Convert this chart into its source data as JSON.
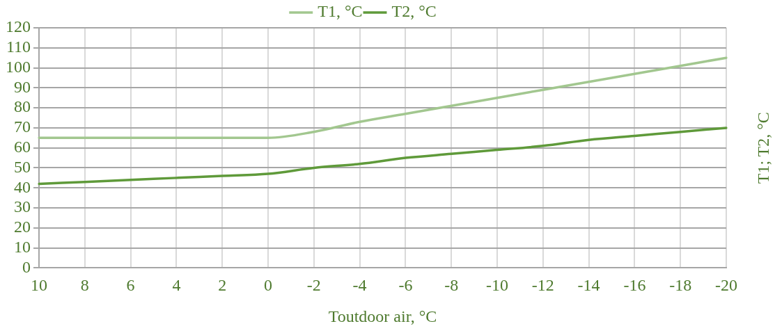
{
  "chart_data": {
    "type": "line",
    "xlabel": "Toutdoor air, °C",
    "ylabel": "T1; T2, °C",
    "categories": [
      "10",
      "8",
      "6",
      "4",
      "2",
      "0",
      "-2",
      "-4",
      "-6",
      "-8",
      "-10",
      "-12",
      "-14",
      "-16",
      "-18",
      "-20"
    ],
    "series": [
      {
        "name": "T1, °C",
        "color": "#a2c78f",
        "values": [
          65,
          65,
          65,
          65,
          65,
          65,
          68,
          73,
          77,
          81,
          85,
          89,
          93,
          97,
          101,
          105
        ]
      },
      {
        "name": "T2, °C",
        "color": "#5f9a3a",
        "values": [
          42,
          43,
          44,
          45,
          46,
          47,
          50,
          52,
          55,
          57,
          59,
          61,
          64,
          66,
          68,
          70
        ]
      }
    ],
    "ylim": [
      0,
      120
    ],
    "yticks": [
      0,
      10,
      20,
      30,
      40,
      50,
      60,
      70,
      80,
      90,
      100,
      110,
      120
    ],
    "grid": true,
    "legend": "top",
    "marker": "none",
    "line_style": "solid"
  }
}
